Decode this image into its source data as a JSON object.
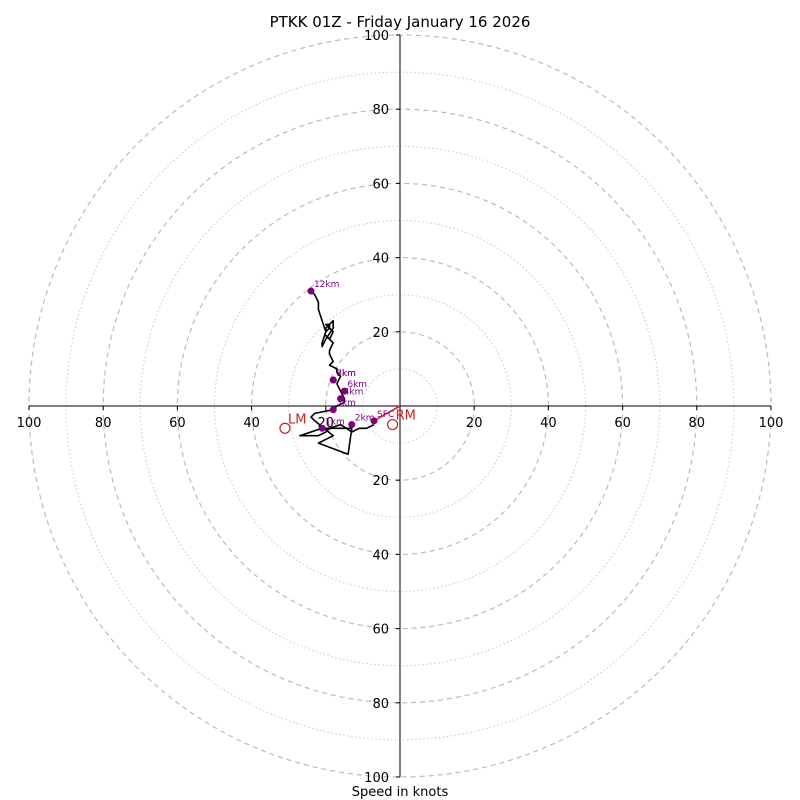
{
  "chart_data": {
    "type": "hodograph",
    "title": "PTKK 01Z - Friday January 16 2026",
    "xlabel": "Speed in knots",
    "range": [
      -100,
      100
    ],
    "major_rings": [
      20,
      40,
      60,
      80,
      100
    ],
    "minor_rings": [
      10,
      30,
      50,
      70,
      90
    ],
    "x_tick_labels": [
      "100",
      "80",
      "60",
      "40",
      "20",
      "20",
      "40",
      "60",
      "80",
      "100"
    ],
    "x_tick_values": [
      -100,
      -80,
      -60,
      -40,
      -20,
      20,
      40,
      60,
      80,
      100
    ],
    "y_tick_labels": [
      "100",
      "80",
      "60",
      "40",
      "20",
      "20",
      "40",
      "60",
      "80",
      "100"
    ],
    "y_tick_values": [
      100,
      80,
      60,
      40,
      20,
      -20,
      -40,
      -60,
      -80,
      -100
    ],
    "wind_trace": [
      [
        -7,
        -5
      ],
      [
        -9,
        -6
      ],
      [
        -11,
        -6
      ],
      [
        -13,
        -7
      ],
      [
        -16,
        -5
      ],
      [
        -19,
        -6
      ],
      [
        -20,
        -7
      ],
      [
        -22,
        -8
      ],
      [
        -25,
        -8
      ],
      [
        -27,
        -8
      ],
      [
        -21,
        -6
      ],
      [
        -19,
        -6
      ],
      [
        -13,
        -6
      ],
      [
        -14,
        -13
      ],
      [
        -22,
        -10
      ],
      [
        -18,
        -8
      ],
      [
        -23,
        -4
      ],
      [
        -24,
        -3
      ],
      [
        -23,
        -2
      ],
      [
        -18,
        -1
      ],
      [
        -17,
        0
      ],
      [
        -15,
        1
      ],
      [
        -15,
        2
      ],
      [
        -16,
        4
      ],
      [
        -17,
        6
      ],
      [
        -16,
        8
      ],
      [
        -17,
        9
      ],
      [
        -17,
        10
      ],
      [
        -19,
        11
      ],
      [
        -18,
        12
      ],
      [
        -19,
        14
      ],
      [
        -19,
        15
      ],
      [
        -18,
        17
      ],
      [
        -20,
        19
      ],
      [
        -19,
        18
      ],
      [
        -18,
        20
      ],
      [
        -19,
        21
      ],
      [
        -19,
        22
      ],
      [
        -20,
        21
      ],
      [
        -20,
        20
      ],
      [
        -21,
        17
      ],
      [
        -21,
        16
      ],
      [
        -20,
        18
      ],
      [
        -18,
        21
      ],
      [
        -18,
        23
      ],
      [
        -19,
        22
      ],
      [
        -20,
        22
      ],
      [
        -19,
        21
      ],
      [
        -20,
        20
      ],
      [
        -22,
        26
      ],
      [
        -22,
        28
      ],
      [
        -23,
        30
      ],
      [
        -24,
        31
      ]
    ],
    "height_markers": [
      {
        "label": "SFC",
        "u": -7,
        "v": -4
      },
      {
        "label": "1km",
        "u": -21,
        "v": -6
      },
      {
        "label": "2km",
        "u": -13,
        "v": -5
      },
      {
        "label": "3km",
        "u": -18,
        "v": -1
      },
      {
        "label": "4km",
        "u": -16,
        "v": 2
      },
      {
        "label": "6km",
        "u": -15,
        "v": 4
      },
      {
        "label": "7km",
        "u": -18,
        "v": 7
      },
      {
        "label": "8km",
        "u": -18,
        "v": 7
      },
      {
        "label": "12km",
        "u": -24,
        "v": 31
      }
    ],
    "shear_vector": {
      "from": [
        -7,
        -4
      ],
      "to": [
        0,
        0
      ]
    },
    "storm_motions": [
      {
        "label": "RM",
        "u": -2,
        "v": -5
      },
      {
        "label": "LM",
        "u": -31,
        "v": -6
      }
    ],
    "colors": {
      "trace": "#000000",
      "marker": "#800080",
      "storm_motion": "#cc2222",
      "shear": "#d62728",
      "grid": "#bbbbbb"
    }
  }
}
